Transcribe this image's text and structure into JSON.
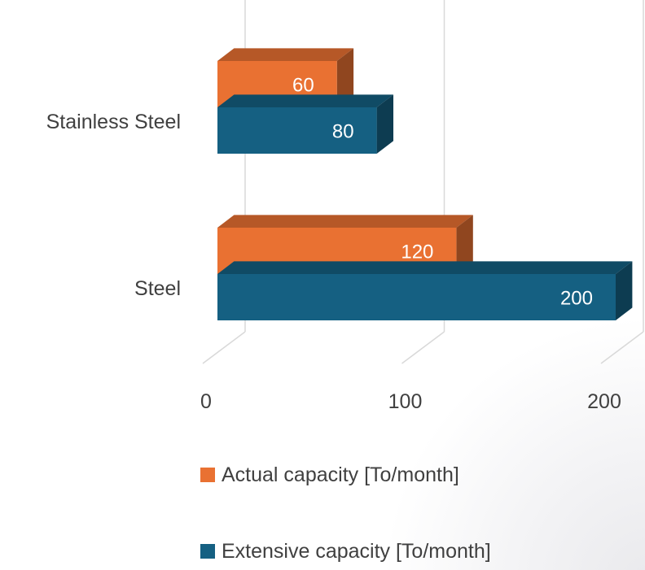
{
  "chart_data": {
    "type": "bar",
    "orientation": "horizontal",
    "style": "3d",
    "categories": [
      "Steel",
      "Stainless Steel"
    ],
    "series": [
      {
        "name": "Actual capacity [To/month]",
        "values": [
          120,
          60
        ],
        "color": "#E97132"
      },
      {
        "name": "Extensive capacity [To/month]",
        "values": [
          200,
          80
        ],
        "color": "#156082"
      }
    ],
    "x_ticks": [
      0,
      100,
      200
    ],
    "xlim": [
      0,
      200
    ],
    "grid": true,
    "legend_position": "bottom"
  }
}
